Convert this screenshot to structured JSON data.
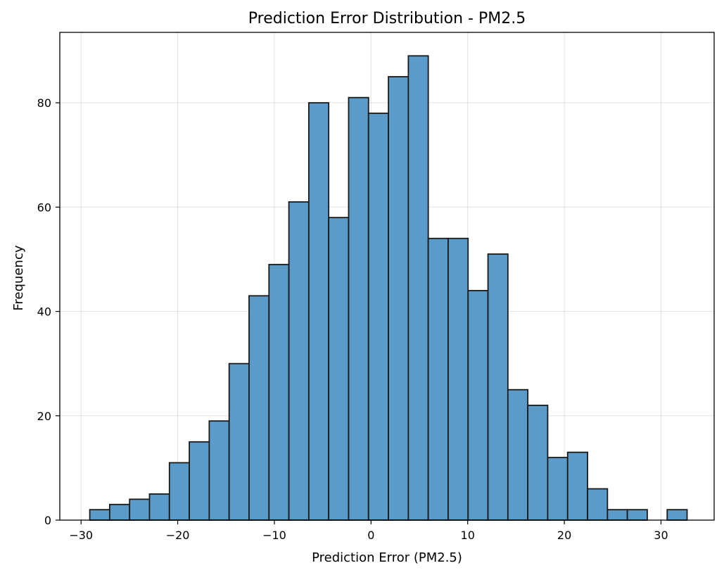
{
  "chart_data": {
    "type": "bar",
    "title": "Prediction Error Distribution - PM2.5",
    "xlabel": "Prediction Error (PM2.5)",
    "ylabel": "Frequency",
    "xlim": [
      -32.2,
      35.5
    ],
    "ylim": [
      0,
      93.5
    ],
    "xticks": [
      -30,
      -20,
      -10,
      0,
      10,
      20,
      30
    ],
    "xtick_labels": [
      "−30",
      "−20",
      "−10",
      "0",
      "10",
      "20",
      "30"
    ],
    "yticks": [
      0,
      20,
      40,
      60,
      80
    ],
    "ytick_labels": [
      "0",
      "20",
      "40",
      "60",
      "80"
    ],
    "grid": true,
    "bar_color": "#5b9bc9",
    "bin_start": -29.1,
    "bin_width": 2.06,
    "values": [
      2,
      3,
      4,
      5,
      11,
      15,
      19,
      30,
      43,
      49,
      61,
      80,
      58,
      81,
      78,
      85,
      89,
      54,
      54,
      44,
      51,
      25,
      22,
      12,
      13,
      6,
      2,
      2,
      0,
      2
    ]
  }
}
